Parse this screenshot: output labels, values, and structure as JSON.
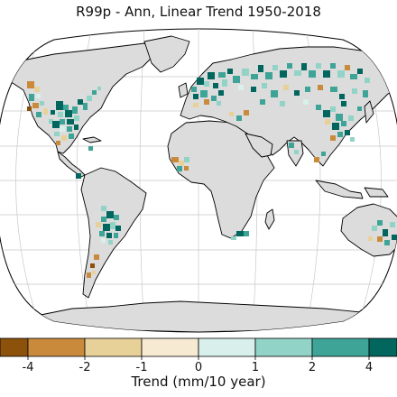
{
  "map": {
    "title": "R99p - Ann, Linear Trend 1950-2018",
    "projection": "Robinson",
    "land_color": "#dcdcdc",
    "coast_color": "#000000",
    "graticule_color": "#c8c8c8"
  },
  "colorbar": {
    "label": "Trend (mm/10 year)",
    "tick_labels": [
      "-4",
      "-2",
      "-1",
      "0",
      "1",
      "2",
      "4"
    ],
    "bins": [
      {
        "range": "< -4",
        "color": "#8c510a"
      },
      {
        "range": "-4 to -2",
        "color": "#c98a3c"
      },
      {
        "range": "-2 to -1",
        "color": "#e8d199"
      },
      {
        "range": "-1 to 0",
        "color": "#f6ead2"
      },
      {
        "range": "0 to 1",
        "color": "#d8efeb"
      },
      {
        "range": "1 to 2",
        "color": "#92d3c7"
      },
      {
        "range": "2 to 4",
        "color": "#3ea497"
      },
      {
        "range": "> 4",
        "color": "#01665e"
      }
    ]
  }
}
